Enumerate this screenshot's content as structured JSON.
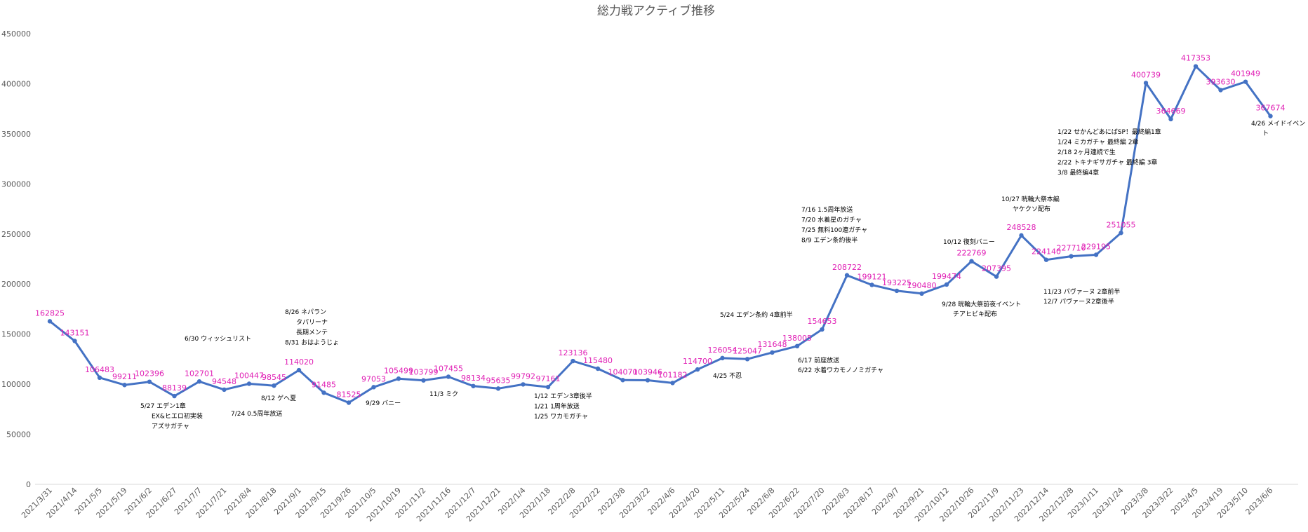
{
  "chart_data": {
    "type": "line",
    "title": "総力戦アクティブ推移",
    "xlabel": "",
    "ylabel": "",
    "ylim": [
      0,
      450000
    ],
    "yticks": [
      0,
      50000,
      100000,
      150000,
      200000,
      250000,
      300000,
      350000,
      400000,
      450000
    ],
    "grid": false,
    "legend": "none",
    "colors": {
      "line": "#4472c4",
      "data_label": "#e01fb5",
      "annotation": "#000000",
      "text": "#595959"
    },
    "categories": [
      "2021/3/31",
      "2021/4/14",
      "2021/5/5",
      "2021/5/19",
      "2021/6/2",
      "2021/6/27",
      "2021/7/7",
      "2021/7/21",
      "2021/8/4",
      "2021/8/18",
      "2021/9/1",
      "2021/9/15",
      "2021/9/26",
      "2021/10/5",
      "2021/10/19",
      "2021/11/2",
      "2021/11/16",
      "2021/12/7",
      "2021/12/21",
      "2022/1/4",
      "2022/1/18",
      "2022/2/8",
      "2022/2/22",
      "2022/3/8",
      "2022/3/22",
      "2022/4/6",
      "2022/4/20",
      "2022/5/11",
      "2022/5/24",
      "2022/6/8",
      "2022/6/22",
      "2022/7/20",
      "2022/8/3",
      "2022/8/17",
      "2022/9/7",
      "2022/9/21",
      "2022/10/12",
      "2022/10/26",
      "2022/11/9",
      "2022/11/23",
      "2022/12/14",
      "2022/12/28",
      "2023/1/11",
      "2023/1/24",
      "2023/3/8",
      "2023/3/22",
      "2023/4/5",
      "2023/4/19",
      "2023/5/10",
      "2023/6/6"
    ],
    "series": [
      {
        "values": [
          162825,
          143151,
          106483,
          99211,
          102396,
          88139,
          102701,
          94548,
          100447,
          98545,
          114020,
          91485,
          81525,
          97053,
          105499,
          103799,
          107455,
          98134,
          95635,
          99792,
          97161,
          123136,
          115480,
          104070,
          103946,
          101182,
          114700,
          126054,
          125047,
          131648,
          138005,
          154653,
          208722,
          199121,
          193225,
          190480,
          199474,
          222769,
          207395,
          248528,
          224140,
          227710,
          229195,
          251055,
          400739,
          364669,
          417353,
          393630,
          401949,
          367674
        ]
      }
    ],
    "annotations": [
      {
        "index": 5,
        "lines": [
          "5/27 エデン1章",
          "EX&ヒエロ初実装",
          "アズサガチャ"
        ]
      },
      {
        "index": 7,
        "lines": [
          "6/30 ウィッシュリスト"
        ]
      },
      {
        "index": 7,
        "lines": [
          "7/24 0.5周年放送"
        ]
      },
      {
        "index": 9,
        "lines": [
          "8/12 ゲヘ夏"
        ]
      },
      {
        "index": 10,
        "lines": [
          "8/26 ネパラン",
          "タパリーナ",
          "長期メンテ",
          "8/31 おはようじょ"
        ]
      },
      {
        "index": 13,
        "lines": [
          "9/29 バニー"
        ]
      },
      {
        "index": 16,
        "lines": [
          "11/3 ミク"
        ]
      },
      {
        "index": 19,
        "lines": [
          "1/12 エデン3章後半",
          "1/21 1周年放送",
          "1/25 ワカモガチャ"
        ]
      },
      {
        "index": 27,
        "lines": [
          "4/25 不忍"
        ]
      },
      {
        "index": 28,
        "lines": [
          "5/24 エデン条約 4章前半"
        ]
      },
      {
        "index": 30,
        "lines": [
          "6/17 前座放送",
          "6/22 水着ワカモノノミガチャ"
        ]
      },
      {
        "index": 30,
        "lines": [
          "7/16 1.5周年放送",
          "7/20 水着星のガチャ",
          "7/25 無料100連ガチャ",
          "8/9 エデン条約後半"
        ]
      },
      {
        "index": 36,
        "lines": [
          "10/12 復刻バニー"
        ]
      },
      {
        "index": 37,
        "lines": [
          "9/28 晄輪大祭前夜イベント",
          "チアヒビキ配布"
        ]
      },
      {
        "index": 39,
        "lines": [
          "10/27 晄輪大祭本編",
          "ヤケクソ配布"
        ]
      },
      {
        "index": 41,
        "lines": [
          "11/23 パヴァーヌ 2章前半",
          "12/7 パヴァーヌ2章後半"
        ]
      },
      {
        "index": 43,
        "lines": [
          "1/22 せかんどあにばSP！最終編1章",
          "1/24 ミカガチャ 最終編 2章",
          "2/18 2ヶ月連続で生",
          "2/22 トキナギサガチャ 最終編 3章",
          "3/8 最終編4章"
        ]
      },
      {
        "index": 49,
        "lines": [
          "4/26 メイドイベン",
          "ト"
        ]
      }
    ]
  }
}
